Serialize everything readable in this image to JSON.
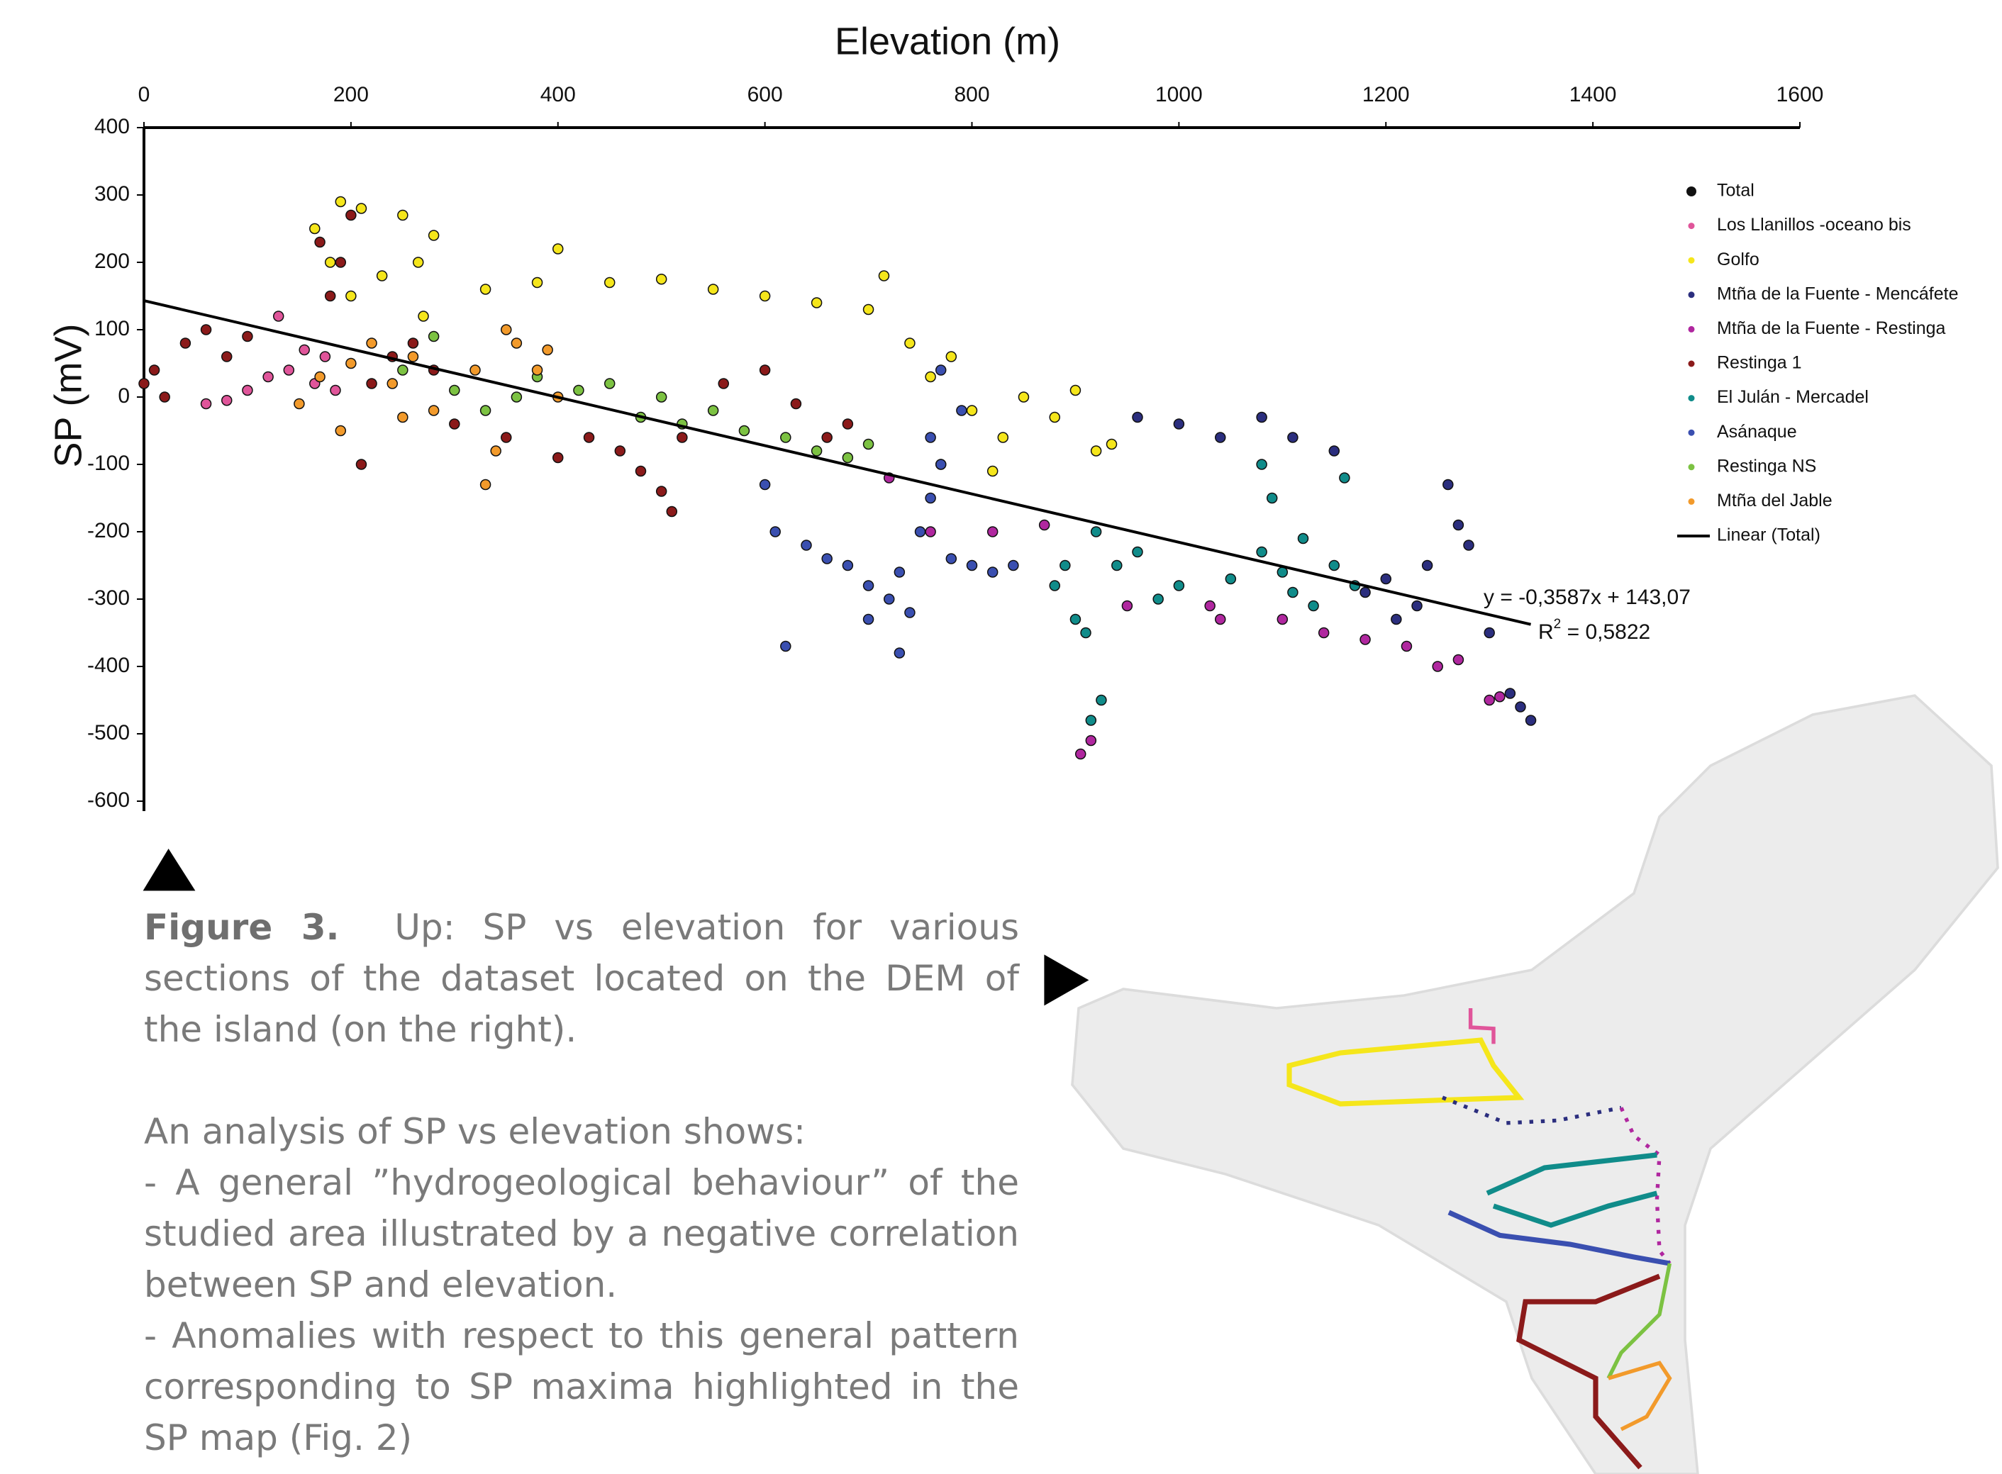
{
  "chart_data": {
    "type": "scatter",
    "x_label": "Elevation (m)",
    "y_label": "SP (mV)",
    "xlim": [
      0,
      1600
    ],
    "xticks": [
      0,
      200,
      400,
      600,
      800,
      1000,
      1200,
      1400,
      1600
    ],
    "ylim": [
      -600,
      400
    ],
    "yticks": [
      400,
      300,
      200,
      100,
      0,
      -100,
      -200,
      -300,
      -400,
      -500,
      -600
    ],
    "grid": false,
    "legend": "right",
    "x_axis_position": "top",
    "series": [
      {
        "name": "Total",
        "color": "#111111",
        "x": [],
        "values": []
      },
      {
        "name": "Los Llanillos -oceano bis",
        "color": "#e0559a",
        "x": [
          60,
          80,
          100,
          120,
          130,
          140,
          155,
          165,
          175,
          185
        ],
        "values": [
          -10,
          -5,
          10,
          30,
          120,
          40,
          70,
          20,
          60,
          10
        ]
      },
      {
        "name": "Golfo",
        "color": "#f5e61b",
        "x": [
          165,
          180,
          190,
          200,
          210,
          230,
          250,
          265,
          270,
          280,
          330,
          380,
          400,
          450,
          500,
          550,
          600,
          650,
          700,
          715,
          740,
          760,
          780,
          800,
          830,
          850,
          880,
          900,
          920,
          935,
          770,
          820
        ],
        "values": [
          250,
          200,
          290,
          150,
          280,
          180,
          270,
          200,
          120,
          240,
          160,
          170,
          220,
          170,
          175,
          160,
          150,
          140,
          130,
          180,
          80,
          30,
          60,
          -20,
          -60,
          0,
          -30,
          10,
          -80,
          -70,
          -100,
          -110
        ]
      },
      {
        "name": "Mtña de la Fuente - Mencáfete",
        "color": "#2b2e7e",
        "x": [
          960,
          1000,
          1040,
          1080,
          1110,
          1150,
          1200,
          1230,
          1240,
          1260,
          1270,
          1280,
          1300,
          1320,
          1330,
          1340,
          1210,
          1180
        ],
        "values": [
          -30,
          -40,
          -60,
          -30,
          -60,
          -80,
          -270,
          -310,
          -250,
          -130,
          -190,
          -220,
          -350,
          -440,
          -460,
          -480,
          -330,
          -290
        ]
      },
      {
        "name": "Mtña de la Fuente - Restinga",
        "color": "#b0279f",
        "x": [
          720,
          760,
          820,
          870,
          905,
          915,
          950,
          1030,
          1040,
          1100,
          1140,
          1180,
          1220,
          1250,
          1270,
          1300,
          1310
        ],
        "values": [
          -120,
          -200,
          -200,
          -190,
          -530,
          -510,
          -310,
          -310,
          -330,
          -330,
          -350,
          -360,
          -370,
          -400,
          -390,
          -450,
          -445
        ]
      },
      {
        "name": "Restinga 1",
        "color": "#8b1a1a",
        "x": [
          0,
          10,
          20,
          40,
          60,
          80,
          100,
          170,
          180,
          190,
          200,
          210,
          220,
          240,
          260,
          280,
          300,
          350,
          400,
          430,
          460,
          480,
          500,
          510,
          520,
          560,
          600,
          630,
          660,
          680
        ],
        "values": [
          20,
          40,
          0,
          80,
          100,
          60,
          90,
          230,
          150,
          200,
          270,
          -100,
          20,
          60,
          80,
          40,
          -40,
          -60,
          -90,
          -60,
          -80,
          -110,
          -140,
          -170,
          -60,
          20,
          40,
          -10,
          -60,
          -40
        ]
      },
      {
        "name": "El Julán - Mercadel",
        "color": "#108c8a",
        "x": [
          880,
          890,
          900,
          910,
          920,
          925,
          915,
          940,
          960,
          980,
          1000,
          1050,
          1080,
          1090,
          1100,
          1110,
          1120,
          1130,
          1150,
          1160,
          1170,
          1080
        ],
        "values": [
          -280,
          -250,
          -330,
          -350,
          -200,
          -450,
          -480,
          -250,
          -230,
          -300,
          -280,
          -270,
          -230,
          -150,
          -260,
          -290,
          -210,
          -310,
          -250,
          -120,
          -280,
          -100
        ]
      },
      {
        "name": "Asánaque",
        "color": "#3a4fb0",
        "x": [
          600,
          610,
          620,
          640,
          660,
          680,
          700,
          720,
          730,
          740,
          750,
          760,
          770,
          780,
          800,
          820,
          840,
          730,
          700,
          770,
          790,
          760
        ],
        "values": [
          -130,
          -200,
          -370,
          -220,
          -240,
          -250,
          -280,
          -300,
          -260,
          -320,
          -200,
          -60,
          -100,
          -240,
          -250,
          -260,
          -250,
          -380,
          -330,
          40,
          -20,
          -150
        ]
      },
      {
        "name": "Restinga NS",
        "color": "#7cc242",
        "x": [
          250,
          280,
          300,
          330,
          360,
          380,
          420,
          450,
          480,
          500,
          520,
          550,
          580,
          620,
          650,
          680,
          700
        ],
        "values": [
          40,
          90,
          10,
          -20,
          0,
          30,
          10,
          20,
          -30,
          0,
          -40,
          -20,
          -50,
          -60,
          -80,
          -90,
          -70
        ]
      },
      {
        "name": "Mtña del Jable",
        "color": "#f29a2b",
        "x": [
          150,
          170,
          190,
          200,
          220,
          240,
          250,
          260,
          280,
          320,
          330,
          350,
          360,
          380,
          390,
          400,
          340
        ],
        "values": [
          -10,
          30,
          -50,
          50,
          80,
          20,
          -30,
          60,
          -20,
          40,
          -130,
          100,
          80,
          40,
          70,
          0,
          -80
        ]
      },
      {
        "name": "Linear (Total)",
        "color": "#000000",
        "line": true,
        "x": [
          0,
          1340
        ],
        "values": [
          143.07,
          -337.59
        ]
      }
    ],
    "annotations": [
      "y = -0,3587x + 143,07",
      [
        "R",
        "2",
        " = 0,5822"
      ]
    ]
  },
  "caption": {
    "label": "Figure 3.",
    "text": "Up: SP vs elevation for various sections of the dataset located on the DEM of the island (on the right).",
    "intro": "An analysis of SP vs elevation shows:",
    "points": [
      "- A general ”hydrogeological behaviour” of the studied area illustrated by a negative correlation between SP and elevation.",
      "- Anomalies with respect to this general pattern corresponding to SP maxima highlighted in the SP map (Fig. 2)"
    ]
  }
}
